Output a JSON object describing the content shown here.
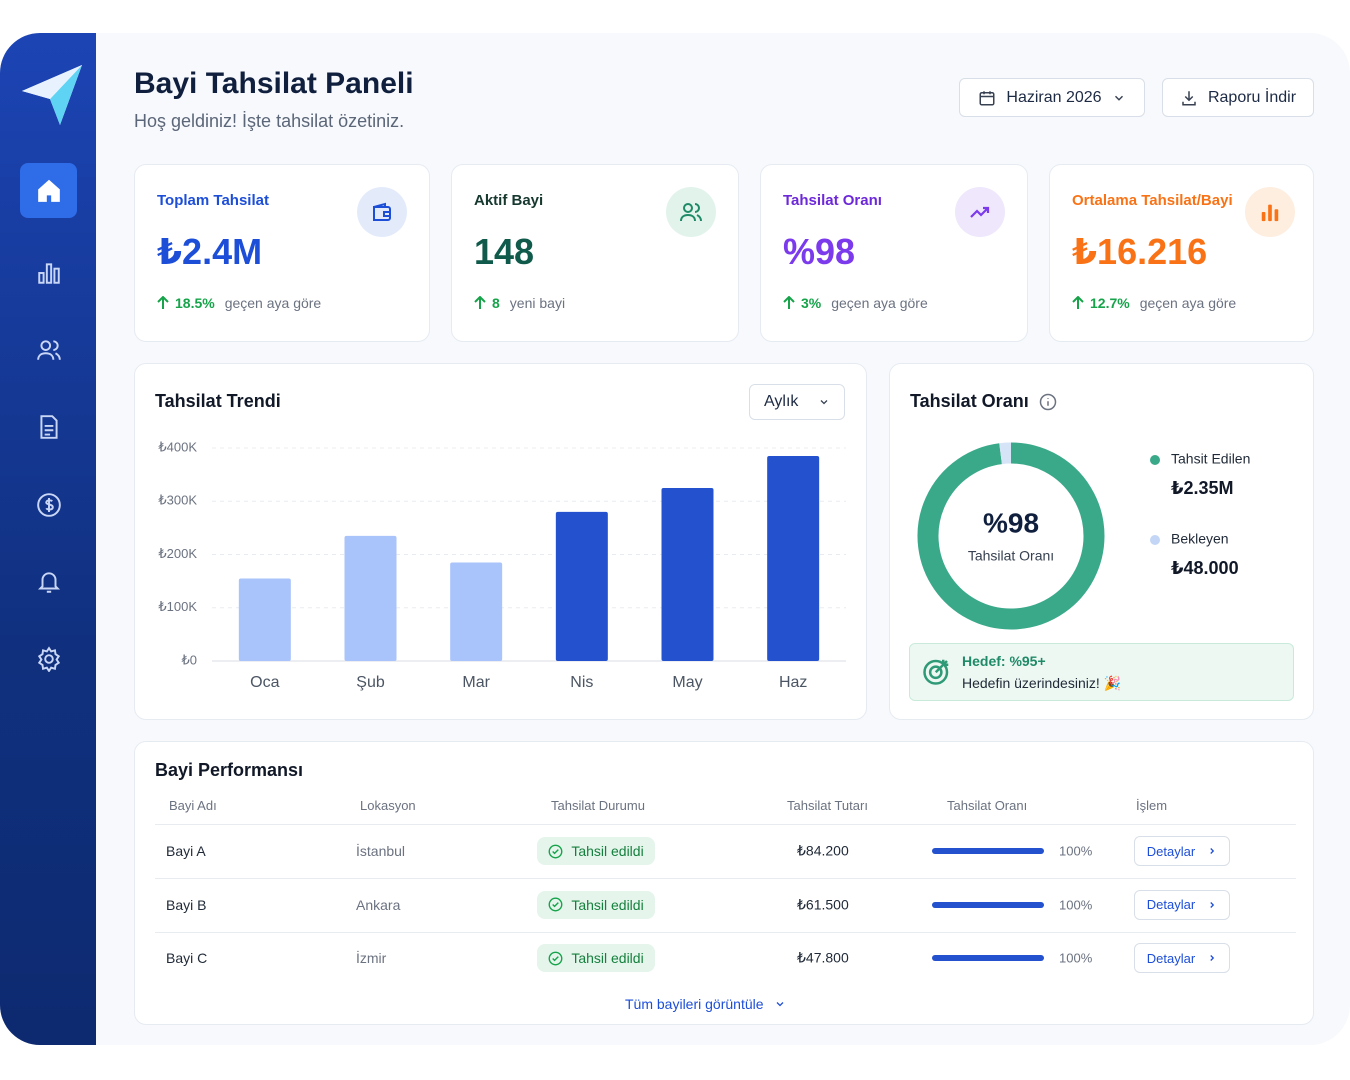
{
  "header": {
    "title": "Bayi Tahsilat Paneli",
    "subtitle": "Hoş geldiniz! İşte tahsilat özetiniz.",
    "period": "Haziran 2026",
    "download": "Raporu İndir"
  },
  "kpis": [
    {
      "label": "Toplam Tahsilat",
      "value": "₺2.4M",
      "change": "18.5%",
      "note": "geçen aya göre"
    },
    {
      "label": "Aktif Bayi",
      "value": "148",
      "change": "8",
      "note": "yeni bayi"
    },
    {
      "label": "Tahsilat Oranı",
      "value": "%98",
      "change": "3%",
      "note": "geçen aya göre"
    },
    {
      "label": "Ortalama Tahsilat/Bayi",
      "value": "₺16.216",
      "change": "12.7%",
      "note": "geçen aya göre"
    }
  ],
  "trend": {
    "type": "bar",
    "title": "Tahsilat Trendi",
    "period": "Aylık",
    "categories": [
      "Oca",
      "Şub",
      "Mar",
      "Nis",
      "May",
      "Haz"
    ],
    "values": [
      155000,
      235000,
      185000,
      280000,
      325000,
      385000
    ],
    "colors": [
      "#a9c3fb",
      "#a9c3fb",
      "#a9c3fb",
      "#2452cf",
      "#2452cf",
      "#2452cf"
    ],
    "ylim": [
      0,
      400000
    ],
    "yticks": [
      {
        "value": 0,
        "label": "₺0"
      },
      {
        "value": 100000,
        "label": "₺100K"
      },
      {
        "value": 200000,
        "label": "₺200K"
      },
      {
        "value": 300000,
        "label": "₺300K"
      },
      {
        "value": 400000,
        "label": "₺400K"
      }
    ],
    "grid": true
  },
  "rate": {
    "type": "donut",
    "title": "Tahsilat Oranı",
    "center_value": "%98",
    "center_label": "Tahsilat Oranı",
    "categories": [
      "Tahsit Edilen",
      "Bekleyen"
    ],
    "values": [
      2350000,
      48000
    ],
    "value_labels": [
      "₺2.35M",
      "₺48.000"
    ],
    "colors": [
      "#3aa98a",
      "#d6e4f7"
    ],
    "goal": "Hedef: %95+",
    "goal_note": "Hedefin üzerindesiniz! 🎉"
  },
  "table": {
    "title": "Bayi Performansı",
    "columns": [
      "Bayi Adı",
      "Lokasyon",
      "Tahsilat Durumu",
      "Tahsilat Tutarı",
      "Tahsilat Oranı",
      "İşlem"
    ],
    "rows": [
      {
        "name": "Bayi A",
        "location": "İstanbul",
        "status": "Tahsil edildi",
        "amount": "₺84.200",
        "rate": 100,
        "rate_label": "100%",
        "action": "Detaylar"
      },
      {
        "name": "Bayi B",
        "location": "Ankara",
        "status": "Tahsil edildi",
        "amount": "₺61.500",
        "rate": 100,
        "rate_label": "100%",
        "action": "Detaylar"
      },
      {
        "name": "Bayi C",
        "location": "İzmir",
        "status": "Tahsil edildi",
        "amount": "₺47.800",
        "rate": 100,
        "rate_label": "100%",
        "action": "Detaylar"
      }
    ],
    "footer_link": "Tüm bayileri görüntüle"
  }
}
